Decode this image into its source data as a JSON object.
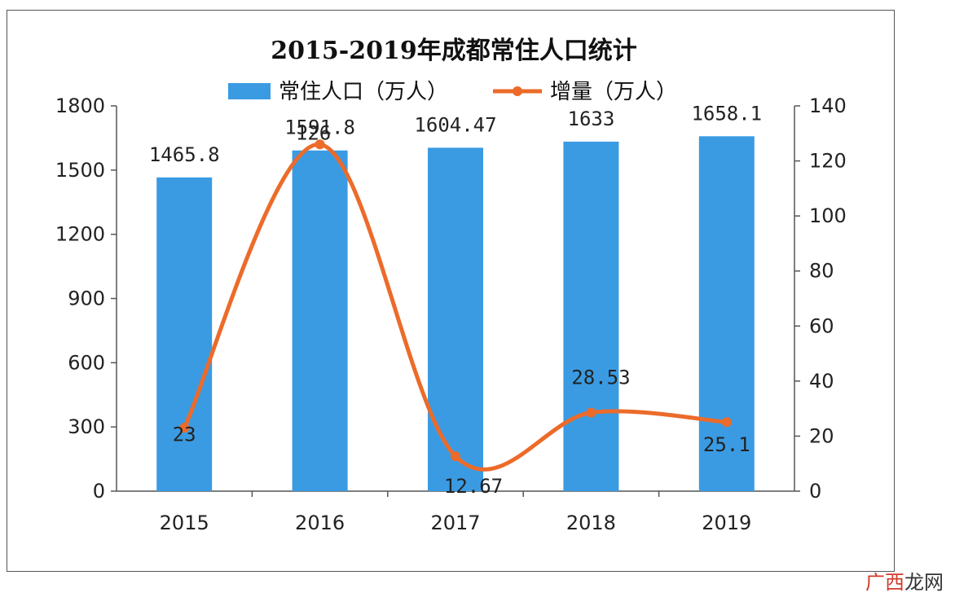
{
  "chart_data": {
    "type": "bar",
    "title": "2015-2019年成都常住人口统计",
    "categories": [
      "2015",
      "2016",
      "2017",
      "2018",
      "2019"
    ],
    "series": [
      {
        "name": "常住人口（万人）",
        "type": "bar",
        "axis": "left",
        "values": [
          1465.8,
          1591.8,
          1604.47,
          1633,
          1658.1
        ],
        "labels": [
          "1465.8",
          "1591.8",
          "1604.47",
          "1633",
          "1658.1"
        ]
      },
      {
        "name": "增量（万人）",
        "type": "line",
        "axis": "right",
        "values": [
          23,
          126,
          12.67,
          28.53,
          25.1
        ],
        "labels": [
          "23",
          "126",
          "12.67",
          "28.53",
          "25.1"
        ]
      }
    ],
    "y_left": {
      "range": [
        0,
        1800
      ],
      "ticks": [
        "0",
        "300",
        "600",
        "900",
        "1200",
        "1500",
        "1800"
      ]
    },
    "y_right": {
      "range": [
        0,
        140
      ],
      "ticks": [
        "0",
        "20",
        "40",
        "60",
        "80",
        "100",
        "120",
        "140"
      ]
    },
    "legend": "top",
    "grid": false,
    "colors": {
      "bar": "#3a9be3",
      "line": "#ec6b2a"
    }
  },
  "watermark": {
    "part1": "广西",
    "part2": "龙网"
  }
}
